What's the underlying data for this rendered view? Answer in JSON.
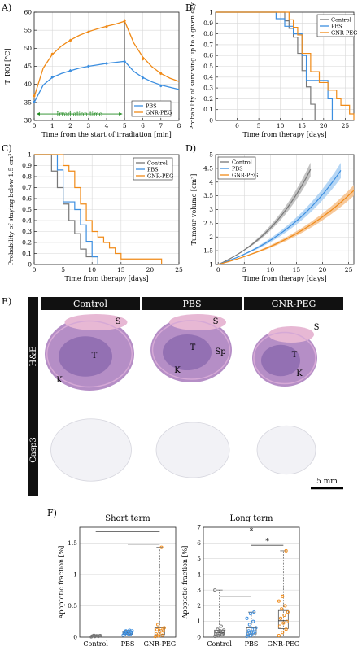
{
  "colors": {
    "control": "#777777",
    "pbs": "#3b8ee0",
    "gnr": "#f08a17",
    "green": "#1f8a1f",
    "axis": "#222222",
    "grid": "#d8d8d8"
  },
  "panels": {
    "A": "A)",
    "B": "B)",
    "C": "C)",
    "D": "D)",
    "E": "E)",
    "F": "F)"
  },
  "histology": {
    "groups": [
      "Control",
      "PBS",
      "GNR-PEG"
    ],
    "rows": [
      "H&E",
      "Casp3"
    ],
    "scalebar": "5 mm",
    "labels": [
      {
        "g": 0,
        "t": "S"
      },
      {
        "g": 0,
        "t": "T"
      },
      {
        "g": 0,
        "t": "K"
      },
      {
        "g": 1,
        "t": "S"
      },
      {
        "g": 1,
        "t": "T"
      },
      {
        "g": 1,
        "t": "Sp"
      },
      {
        "g": 1,
        "t": "K"
      },
      {
        "g": 2,
        "t": "S"
      },
      {
        "g": 2,
        "t": "T"
      },
      {
        "g": 2,
        "t": "K"
      }
    ]
  },
  "chart_data": [
    {
      "id": "A",
      "type": "line",
      "xlabel": "Time from the start of irradiation [min]",
      "ylabel": "T_ROI [°C]",
      "xlim": [
        0,
        8
      ],
      "ylim": [
        30,
        60
      ],
      "xticks": [
        0,
        1,
        2,
        3,
        4,
        5,
        6,
        7,
        8
      ],
      "yticks": [
        30,
        35,
        40,
        45,
        50,
        55,
        60
      ],
      "annotation": "Irradiation time",
      "legend": [
        "PBS",
        "GNR-PEG"
      ],
      "legend_position": "bottom-right",
      "series": [
        {
          "name": "PBS",
          "x": [
            0,
            1,
            2,
            3,
            4,
            5,
            6,
            7
          ],
          "values": [
            35.1,
            42.0,
            43.8,
            45.0,
            45.8,
            46.3,
            41.8,
            39.6
          ],
          "curve_x": [
            0,
            0.5,
            1,
            1.5,
            2,
            2.5,
            3,
            3.5,
            4,
            4.5,
            5,
            5.5,
            6,
            6.5,
            7,
            7.5,
            8
          ],
          "curve_y": [
            35,
            39.8,
            41.9,
            43.0,
            43.8,
            44.5,
            45.0,
            45.4,
            45.8,
            46.1,
            46.4,
            43.6,
            41.9,
            40.7,
            39.8,
            39.2,
            38.6
          ]
        },
        {
          "name": "GNR-PEG",
          "x": [
            0,
            1,
            2,
            3,
            4,
            5,
            6,
            7
          ],
          "values": [
            36.8,
            48.4,
            52.2,
            54.5,
            56.0,
            57.7,
            47.0,
            43.0
          ],
          "curve_x": [
            0,
            0.5,
            1,
            1.5,
            2,
            2.5,
            3,
            3.5,
            4,
            4.5,
            5,
            5.5,
            6,
            6.5,
            7,
            7.5,
            8
          ],
          "curve_y": [
            36.5,
            44.5,
            48.3,
            50.6,
            52.3,
            53.6,
            54.6,
            55.4,
            56.1,
            56.7,
            57.5,
            51.5,
            47.6,
            44.9,
            43.0,
            41.7,
            40.8
          ]
        }
      ]
    },
    {
      "id": "B",
      "type": "line",
      "xlabel": "Time from therapy [days]",
      "ylabel": "Probability of surviving up to a given day",
      "xlim": [
        -5,
        27
      ],
      "ylim": [
        0,
        1
      ],
      "xticks": [
        0,
        5,
        10,
        15,
        20,
        25
      ],
      "yticks": [
        0,
        0.1,
        0.2,
        0.3,
        0.4,
        0.5,
        0.6,
        0.7,
        0.8,
        0.9,
        1
      ],
      "legend": [
        "Control",
        "PBS",
        "GNR-PEG"
      ],
      "legend_position": "top-right",
      "series": [
        {
          "name": "Control",
          "x": [
            -5,
            11,
            12,
            13,
            14,
            15,
            16,
            17,
            18
          ],
          "values": [
            1,
            0.92,
            0.85,
            0.77,
            0.62,
            0.46,
            0.31,
            0.15,
            0
          ]
        },
        {
          "name": "PBS",
          "x": [
            -5,
            9,
            11,
            13,
            15,
            16,
            19,
            21,
            22
          ],
          "values": [
            1,
            0.94,
            0.87,
            0.8,
            0.6,
            0.37,
            0.37,
            0.2,
            0
          ]
        },
        {
          "name": "GNR-PEG",
          "x": [
            -5,
            12,
            13,
            14,
            15,
            17,
            19,
            21,
            23,
            24,
            26,
            27
          ],
          "values": [
            1,
            0.93,
            0.86,
            0.79,
            0.62,
            0.45,
            0.35,
            0.28,
            0.2,
            0.14,
            0.06,
            0
          ]
        }
      ]
    },
    {
      "id": "C",
      "type": "line",
      "xlabel": "Time from therapy [days]",
      "ylabel": "Probability of staying below 1.5 cm³",
      "xlim": [
        0,
        25
      ],
      "ylim": [
        0,
        1
      ],
      "xticks": [
        0,
        5,
        10,
        15,
        20,
        25
      ],
      "yticks": [
        0,
        0.1,
        0.2,
        0.3,
        0.4,
        0.5,
        0.6,
        0.7,
        0.8,
        0.9,
        1
      ],
      "legend": [
        "Control",
        "PBS",
        "GNR-PEG"
      ],
      "legend_position": "top-right",
      "series": [
        {
          "name": "Control",
          "x": [
            0,
            3,
            4,
            5,
            6,
            7,
            8,
            9,
            11
          ],
          "values": [
            1,
            0.85,
            0.7,
            0.55,
            0.4,
            0.28,
            0.14,
            0.07,
            0
          ]
        },
        {
          "name": "PBS",
          "x": [
            0,
            4,
            5,
            6,
            7,
            8,
            9,
            10,
            11
          ],
          "values": [
            1,
            0.86,
            0.57,
            0.57,
            0.5,
            0.36,
            0.21,
            0.07,
            0
          ]
        },
        {
          "name": "GNR-PEG",
          "x": [
            0,
            5,
            6,
            7,
            8,
            9,
            10,
            11,
            12,
            13,
            14,
            15,
            21,
            22
          ],
          "values": [
            1,
            0.9,
            0.85,
            0.7,
            0.55,
            0.4,
            0.3,
            0.25,
            0.2,
            0.15,
            0.1,
            0.05,
            0.05,
            0
          ]
        }
      ]
    },
    {
      "id": "D",
      "type": "area",
      "xlabel": "Time from therapy [days]",
      "ylabel": "Tumour volume [cm³]",
      "xlim": [
        -0.5,
        26
      ],
      "ylim": [
        1,
        5
      ],
      "xticks": [
        0,
        5,
        10,
        15,
        20,
        25
      ],
      "yticks": [
        1,
        1.5,
        2,
        2.5,
        3,
        3.5,
        4,
        4.5,
        5
      ],
      "legend": [
        "Control",
        "PBS",
        "GNR-PEG"
      ],
      "legend_position": "top-left",
      "series": [
        {
          "name": "Control",
          "x": [
            0,
            17.7
          ],
          "growth_rate": 0.0845,
          "band": 0.08
        },
        {
          "name": "PBS",
          "x": [
            0,
            23.5
          ],
          "growth_rate": 0.0633,
          "band": 0.09
        },
        {
          "name": "GNR-PEG",
          "x": [
            0,
            26
          ],
          "growth_rate": 0.0503,
          "band": 0.08
        }
      ]
    },
    {
      "id": "F1",
      "type": "scatter",
      "title": "Short term",
      "ylabel": "Apoptotic fraction [%]",
      "categories": [
        "Control",
        "PBS",
        "GNR-PEG"
      ],
      "ylim": [
        0,
        1.75
      ],
      "yticks": [
        0,
        0.5,
        1,
        1.5
      ],
      "brackets": [
        {
          "from": 0,
          "to": 2,
          "y": 1.68,
          "sig": ""
        },
        {
          "from": 1,
          "to": 2,
          "y": 1.48,
          "sig": ""
        }
      ],
      "series": [
        {
          "name": "Control",
          "values": [
            0.005,
            0.01,
            0.012,
            0.015,
            0.018,
            0.02,
            0.02,
            0.022,
            0.025,
            0.028
          ]
        },
        {
          "name": "PBS",
          "values": [
            0.03,
            0.04,
            0.05,
            0.06,
            0.06,
            0.07,
            0.08,
            0.09,
            0.1,
            0.1,
            0.11
          ]
        },
        {
          "name": "GNR-PEG",
          "values": [
            0.01,
            0.02,
            0.03,
            0.05,
            0.08,
            0.1,
            0.12,
            0.14,
            0.15,
            0.2,
            1.43
          ]
        }
      ],
      "box": [
        {
          "q1": 0.012,
          "med": 0.018,
          "q3": 0.022,
          "lo": 0.005,
          "hi": 0.028
        },
        {
          "q1": 0.045,
          "med": 0.065,
          "q3": 0.095,
          "lo": 0.03,
          "hi": 0.11
        },
        {
          "q1": 0.04,
          "med": 0.1,
          "q3": 0.15,
          "lo": 0.01,
          "hi": 1.43
        }
      ]
    },
    {
      "id": "F2",
      "type": "scatter",
      "title": "Long term",
      "ylabel": "Apoptotic fraction [%]",
      "categories": [
        "Control",
        "PBS",
        "GNR-PEG"
      ],
      "ylim": [
        0,
        7
      ],
      "yticks": [
        0,
        1,
        2,
        3,
        4,
        5,
        6,
        7
      ],
      "brackets": [
        {
          "from": 0,
          "to": 1,
          "y": 2.6,
          "sig": ""
        },
        {
          "from": 0,
          "to": 2,
          "y": 6.5,
          "sig": "*"
        },
        {
          "from": 1,
          "to": 2,
          "y": 5.85,
          "sig": "*"
        }
      ],
      "series": [
        {
          "name": "Control",
          "values": [
            0.05,
            0.1,
            0.15,
            0.2,
            0.25,
            0.3,
            0.35,
            0.4,
            0.45,
            0.5,
            0.7,
            3.0
          ]
        },
        {
          "name": "PBS",
          "values": [
            0.05,
            0.1,
            0.15,
            0.2,
            0.3,
            0.35,
            0.4,
            0.5,
            0.6,
            0.8,
            1.0,
            1.2,
            1.5,
            1.6
          ]
        },
        {
          "name": "GNR-PEG",
          "values": [
            0.1,
            0.3,
            0.5,
            0.7,
            0.9,
            1.0,
            1.2,
            1.4,
            1.6,
            1.8,
            2.0,
            2.3,
            2.6,
            5.5
          ]
        }
      ],
      "box": [
        {
          "q1": 0.15,
          "med": 0.28,
          "q3": 0.45,
          "lo": 0.05,
          "hi": 3.0
        },
        {
          "q1": 0.2,
          "med": 0.38,
          "q3": 0.6,
          "lo": 0.05,
          "hi": 1.6
        },
        {
          "q1": 0.55,
          "med": 1.05,
          "q3": 1.7,
          "lo": 0.1,
          "hi": 5.5
        }
      ]
    }
  ]
}
